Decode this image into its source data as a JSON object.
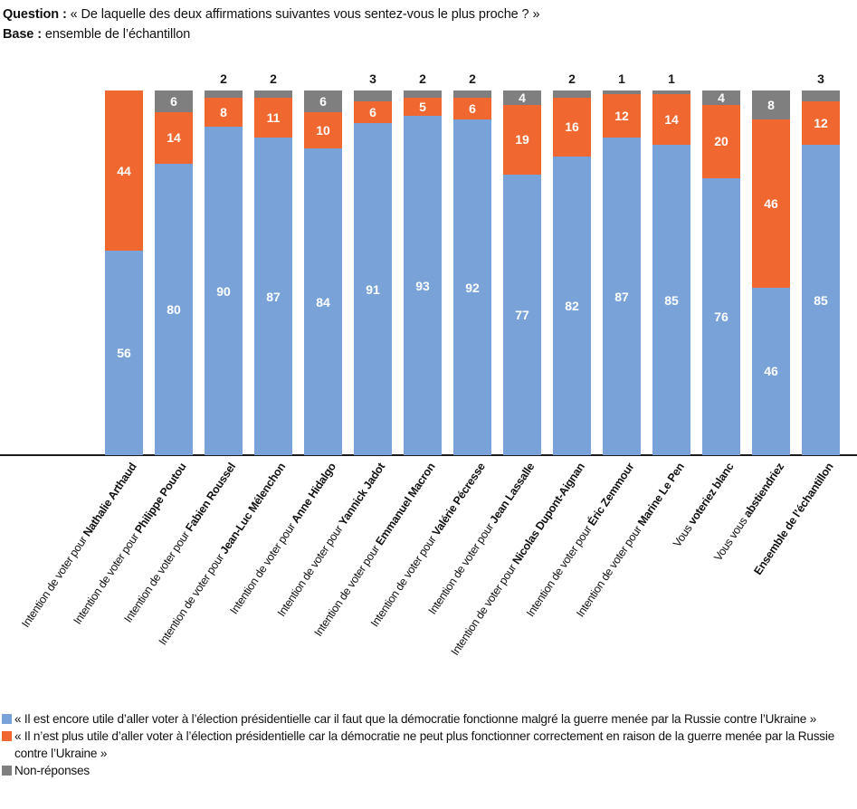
{
  "header": {
    "question_label": "Question :",
    "question_text": " « De laquelle des deux affirmations suivantes vous sentez-vous le plus proche ? »",
    "base_label": "Base :",
    "base_text": " ensemble de l’échantillon"
  },
  "colors": {
    "blue": "#79A3D8",
    "orange": "#F0682F",
    "gray": "#7F7F7F",
    "axis": "#1a1a1a",
    "label_inside": "#FFFFFF",
    "label_above": "#1a1a1a"
  },
  "chart_data": {
    "type": "bar",
    "stacked": true,
    "unit": "%",
    "ylim": [
      0,
      100
    ],
    "grid": false,
    "legend_position": "bottom",
    "title": "Question : « De laquelle des deux affirmations suivantes vous sentez-vous le plus proche ? »",
    "subtitle": "Base : ensemble de l’échantillon",
    "categories": [
      {
        "prefix": "Intention de voter pour ",
        "name": "Nathalie Arthaud"
      },
      {
        "prefix": "Intention de voter pour ",
        "name": "Philippe Poutou"
      },
      {
        "prefix": "Intention de voter pour ",
        "name": "Fabien Roussel"
      },
      {
        "prefix": "Intention de voter pour ",
        "name": "Jean-Luc Mélenchon"
      },
      {
        "prefix": "Intention de voter pour ",
        "name": "Anne Hidalgo"
      },
      {
        "prefix": "Intention de voter pour ",
        "name": "Yannick Jadot"
      },
      {
        "prefix": "Intention de voter pour ",
        "name": "Emmanuel Macron"
      },
      {
        "prefix": "Intention de voter pour ",
        "name": "Valérie Pécresse"
      },
      {
        "prefix": "Intention de voter pour ",
        "name": "Jean Lassalle"
      },
      {
        "prefix": "Intention de voter pour ",
        "name": "Nicolas Dupont-Aignan"
      },
      {
        "prefix": "Intention de voter pour ",
        "name": "Éric Zemmour"
      },
      {
        "prefix": "Intention de voter pour ",
        "name": "Marine Le Pen"
      },
      {
        "prefix": "Vous ",
        "name": "voteriez blanc"
      },
      {
        "prefix": "Vous vous ",
        "name": "abstiendriez"
      },
      {
        "prefix": "",
        "name": "Ensemble de l’échantillon"
      }
    ],
    "series": [
      {
        "name": "« Il est encore utile d’aller voter à l’élection présidentielle car il faut que la démocratie fonctionne malgré la guerre menée par la Russie contre l’Ukraine »",
        "color": "blue",
        "values": [
          56,
          80,
          90,
          87,
          84,
          91,
          93,
          92,
          77,
          82,
          87,
          85,
          76,
          46,
          85
        ]
      },
      {
        "name": "« Il n’est plus utile d’aller voter à l’élection présidentielle car la démocratie ne peut plus fonctionner correctement en raison de la guerre menée par la Russie contre l’Ukraine »",
        "color": "orange",
        "values": [
          44,
          14,
          8,
          11,
          10,
          6,
          5,
          6,
          19,
          16,
          12,
          14,
          20,
          46,
          12
        ]
      },
      {
        "name": "Non-réponses",
        "color": "gray",
        "values": [
          0,
          6,
          2,
          2,
          6,
          3,
          2,
          2,
          4,
          2,
          1,
          1,
          4,
          8,
          3
        ]
      }
    ]
  }
}
